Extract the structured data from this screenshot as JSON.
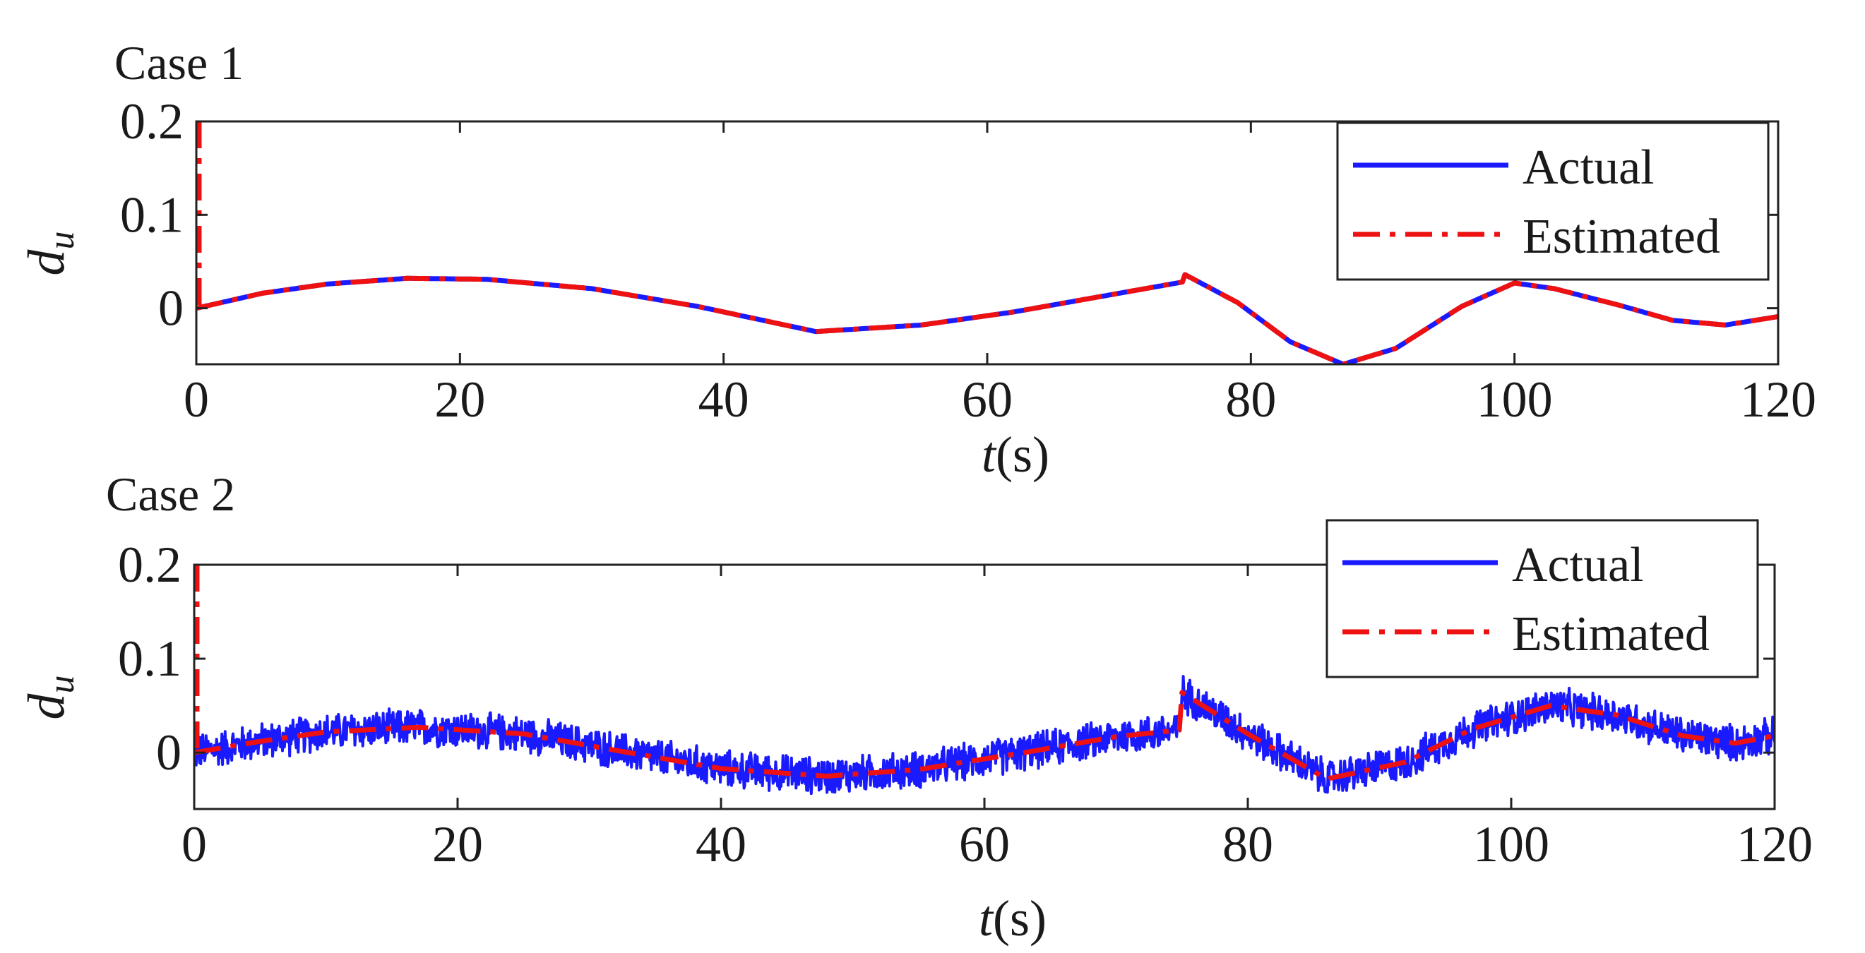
{
  "chart_data": [
    {
      "type": "line",
      "title": "Case 1",
      "xlabel_italic": "t",
      "xlabel_rest": "(s)",
      "ylabel_main": "d",
      "ylabel_sub": "u",
      "xlim": [
        0,
        120
      ],
      "ylim": [
        -0.06,
        0.2
      ],
      "xticks": [
        0,
        20,
        40,
        60,
        80,
        100,
        120
      ],
      "yticks": [
        0,
        0.1,
        0.2
      ],
      "ytick_labels": [
        "0",
        "0.1",
        "0.2"
      ],
      "legend_position": "top-right",
      "noise": 0,
      "series": [
        {
          "name": "Actual",
          "color": "#1a1aff",
          "style": "solid",
          "x": [
            0,
            5,
            10,
            16,
            22,
            30,
            38,
            47,
            55,
            62,
            70,
            74.8,
            75,
            79,
            83,
            87,
            91,
            96,
            100,
            103,
            108,
            112,
            116,
            120
          ],
          "y": [
            0,
            0.016,
            0.026,
            0.032,
            0.031,
            0.021,
            0.002,
            -0.025,
            -0.018,
            -0.004,
            0.016,
            0.028,
            0.036,
            0.006,
            -0.036,
            -0.06,
            -0.043,
            0.002,
            0.027,
            0.021,
            0.003,
            -0.013,
            -0.018,
            -0.009
          ]
        },
        {
          "name": "Estimated",
          "color": "#ee1111",
          "style": "dashdot",
          "x": [
            0,
            5,
            10,
            16,
            22,
            30,
            38,
            47,
            55,
            62,
            70,
            74.8,
            75,
            79,
            83,
            87,
            91,
            96,
            100,
            103,
            108,
            112,
            116,
            120
          ],
          "y": [
            0,
            0.016,
            0.026,
            0.032,
            0.031,
            0.021,
            0.002,
            -0.025,
            -0.018,
            -0.004,
            0.016,
            0.028,
            0.036,
            0.006,
            -0.036,
            -0.06,
            -0.043,
            0.002,
            0.027,
            0.021,
            0.003,
            -0.013,
            -0.018,
            -0.009
          ],
          "initial_spike": [
            0.2,
            0
          ]
        }
      ],
      "legend": [
        "Actual",
        "Estimated"
      ]
    },
    {
      "type": "line",
      "title": "Case 2",
      "xlabel_italic": "t",
      "xlabel_rest": "(s)",
      "ylabel_main": "d",
      "ylabel_sub": "u",
      "xlim": [
        0,
        120
      ],
      "ylim": [
        -0.06,
        0.2
      ],
      "xticks": [
        0,
        20,
        40,
        60,
        80,
        100,
        120
      ],
      "yticks": [
        0,
        0.1,
        0.2
      ],
      "ytick_labels": [
        "0",
        "0.1",
        "0.2"
      ],
      "legend_position": "top-right",
      "noise": 0.022,
      "series": [
        {
          "name": "Actual",
          "color": "#1a1aff",
          "style": "solid",
          "x": [
            0,
            5,
            10,
            17,
            25,
            33,
            40,
            48,
            55,
            63,
            70,
            74.8,
            75,
            80,
            86,
            92,
            97,
            103,
            108,
            113,
            117,
            120
          ],
          "y": [
            0,
            0.012,
            0.022,
            0.027,
            0.02,
            0.0,
            -0.017,
            -0.025,
            -0.018,
            0.0,
            0.017,
            0.024,
            0.064,
            0.02,
            -0.028,
            -0.01,
            0.025,
            0.05,
            0.04,
            0.018,
            0.01,
            0.018
          ]
        },
        {
          "name": "Estimated",
          "color": "#ee1111",
          "style": "dashdot",
          "x": [
            0,
            5,
            10,
            17,
            25,
            33,
            40,
            48,
            55,
            63,
            70,
            74.8,
            75,
            80,
            86,
            92,
            97,
            103,
            108,
            113,
            117,
            120
          ],
          "y": [
            0,
            0.012,
            0.022,
            0.027,
            0.02,
            0.0,
            -0.017,
            -0.025,
            -0.018,
            0.0,
            0.017,
            0.024,
            0.064,
            0.02,
            -0.028,
            -0.01,
            0.025,
            0.05,
            0.04,
            0.018,
            0.01,
            0.018
          ],
          "initial_spike": [
            0.2,
            0
          ]
        }
      ],
      "legend": [
        "Actual",
        "Estimated"
      ]
    }
  ]
}
